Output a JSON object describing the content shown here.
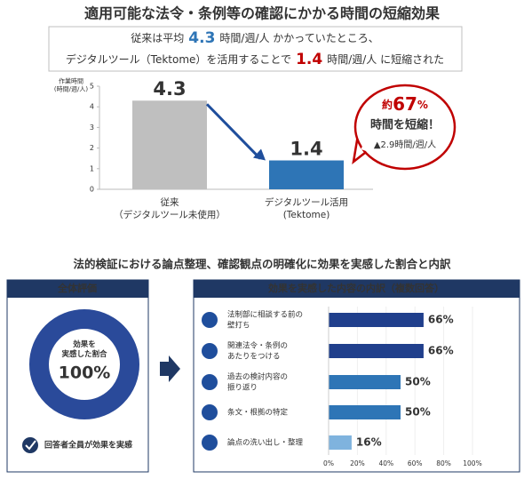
{
  "title": "適用可能な法令・条例等の確認にかかる時間の短縮効果",
  "summary": {
    "line1": [
      "従来は平均",
      "4.3",
      "時間/週/人 かかっていたところ、"
    ],
    "line2": [
      "デジタルツール（Tektome）を活用することで",
      "1.4",
      "時間/週/人 に短縮された"
    ]
  },
  "section2_title": "法的検証における論点整理、確認観点の明確化に効果を実感した割合と内訳",
  "chart_data": [
    {
      "type": "bar",
      "ylabel": [
        "作業時間",
        "(時間/週/人)"
      ],
      "categories": [
        [
          "従来",
          "（デジタルツール未使用）"
        ],
        [
          "デジタルツール活用",
          "(Tektome)"
        ]
      ],
      "values": [
        4.3,
        1.4
      ],
      "colors": [
        "#bfbfbf",
        "#2e75b6"
      ],
      "value_label_colors": [
        "#2e75b6",
        "#2e75b6"
      ],
      "ylim": [
        0,
        5
      ],
      "yticks": [
        0,
        1,
        2,
        3,
        4,
        5
      ],
      "grid": false,
      "callout": {
        "prefix": "約",
        "value": "67",
        "unit": "%",
        "line2": "時間を短縮！",
        "line3": "▲2.9時間/週/人"
      }
    },
    {
      "type": "donut",
      "title": "全体評価",
      "center_label": [
        "効果を",
        "実感した割合"
      ],
      "values": [
        100
      ],
      "value_labels": [
        "100%"
      ],
      "color": "#2a4a9a",
      "footer": "回答者全員が効果を実感"
    },
    {
      "type": "hbar",
      "title": "効果を実感した内容の内訳（複数回答）",
      "categories": [
        [
          "法制部に相談する前の",
          "壁打ち"
        ],
        [
          "関連法令・条例の",
          "あたりをつける"
        ],
        [
          "過去の検討内容の",
          "振り返り"
        ],
        [
          "条文・根拠の特定"
        ],
        [
          "論点の洗い出し・整理"
        ]
      ],
      "values": [
        66,
        66,
        50,
        50,
        16
      ],
      "value_labels": [
        "66%",
        "66%",
        "50%",
        "50%",
        "16%"
      ],
      "colors": [
        "#203f8c",
        "#203f8c",
        "#2e75b6",
        "#2e75b6",
        "#7fb3de"
      ],
      "xlim": [
        0,
        100
      ],
      "xticks": [
        {
          "value": 0,
          "label": "0%"
        },
        {
          "value": 20,
          "label": "20%"
        },
        {
          "value": 40,
          "label": "40%"
        },
        {
          "value": 60,
          "label": "60%"
        },
        {
          "value": 80,
          "label": "80%"
        },
        {
          "value": 100,
          "label": "100%"
        }
      ],
      "grid": true
    }
  ]
}
